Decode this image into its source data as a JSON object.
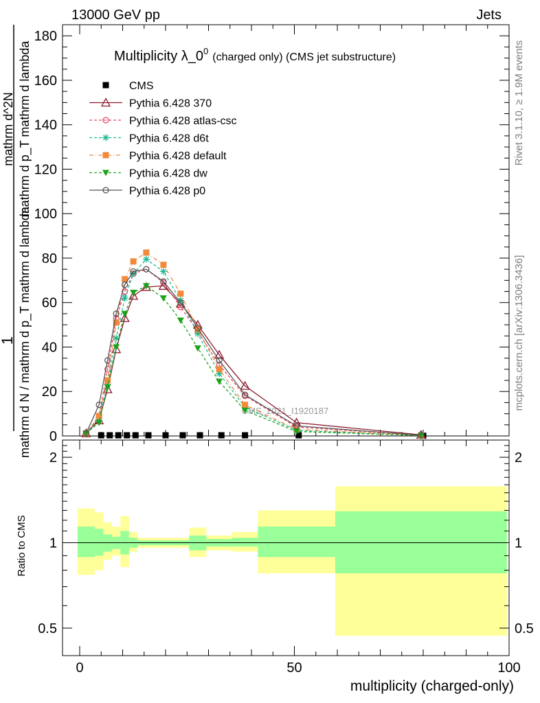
{
  "header": {
    "energy_label": "13000 GeV pp",
    "category_label": "Jets"
  },
  "side_labels": {
    "rivet": "Rivet 3.1.10, ≥ 1.9M events",
    "mcplots": "mcplots.cern.ch [arXiv:1306.3436]"
  },
  "watermark": "CMS_2021_I1920187",
  "chart_data": [
    {
      "type": "line",
      "title": "Multiplicity λ_0",
      "title_superscript": "0",
      "subtitle": "(charged only) (CMS jet substructure)",
      "xlabel": "multiplicity (charged-only)",
      "ylabel_lines": [
        "1",
        "mathrm d N / mathrm d p_T mathrm d lambda",
        "mathrm d^2N",
        "mathrm d p_T mathrm d lambda"
      ],
      "xlim": [
        -4,
        100
      ],
      "ylim": [
        0,
        185
      ],
      "x_ticks": [
        0,
        50,
        100
      ],
      "y_ticks": [
        0,
        20,
        40,
        60,
        80,
        100,
        120,
        140,
        160,
        180
      ],
      "legend_position": "top-left",
      "series": [
        {
          "name": "CMS",
          "color": "#000000",
          "marker": "square",
          "x": [
            5,
            7,
            9,
            11,
            13,
            16,
            20,
            24,
            28,
            33,
            38.5,
            51,
            80
          ],
          "y": [
            0.3,
            0.3,
            0.3,
            0.3,
            0.3,
            0.3,
            0.3,
            0.3,
            0.3,
            0.3,
            0.3,
            0.3,
            0.1
          ]
        },
        {
          "name": "Pythia 6.428 370",
          "color": "#8b1a2b",
          "marker": "triangle-open",
          "dash": "solid",
          "x": [
            1.5,
            4.5,
            6.5,
            8.5,
            10.5,
            12.5,
            15.5,
            19.5,
            23.5,
            27.5,
            32.5,
            38.5,
            50.5,
            79.5
          ],
          "y": [
            1.2,
            7,
            21,
            39,
            53,
            63,
            67,
            67.5,
            59.5,
            50,
            36.5,
            22.5,
            6,
            0.5
          ]
        },
        {
          "name": "Pythia 6.428 atlas-csc",
          "color": "#e8475f",
          "marker": "circle-open",
          "dash": "4,3",
          "x": [
            1.5,
            4.5,
            6.5,
            8.5,
            10.5,
            12.5,
            15.5,
            19.5,
            23.5,
            27.5,
            32.5,
            38.5,
            50.5,
            79.5
          ],
          "y": [
            1.2,
            9,
            30,
            53,
            65,
            73,
            75,
            69,
            58,
            47,
            32,
            18,
            4,
            0.3
          ]
        },
        {
          "name": "Pythia 6.428 d6t",
          "color": "#19b895",
          "marker": "asterisk",
          "dash": "4,3",
          "x": [
            1.5,
            4.5,
            6.5,
            8.5,
            10.5,
            12.5,
            15.5,
            19.5,
            23.5,
            27.5,
            32.5,
            38.5,
            50.5,
            79.5
          ],
          "y": [
            1.2,
            8,
            23,
            44,
            62,
            73,
            79.5,
            74,
            61,
            46,
            28,
            13,
            2.5,
            0.2
          ]
        },
        {
          "name": "Pythia 6.428 default",
          "color": "#f28a3c",
          "marker": "square",
          "dash": "6,3,1,3",
          "x": [
            1.5,
            4.5,
            6.5,
            8.5,
            10.5,
            12.5,
            15.5,
            19.5,
            23.5,
            27.5,
            32.5,
            38.5,
            50.5,
            79.5
          ],
          "y": [
            1.2,
            9,
            25,
            51,
            70.5,
            78.5,
            82.5,
            77,
            64,
            48,
            30,
            14,
            3,
            0.2
          ]
        },
        {
          "name": "Pythia 6.428 dw",
          "color": "#1aa31a",
          "marker": "triangle-down",
          "dash": "4,3",
          "x": [
            1.5,
            4.5,
            6.5,
            8.5,
            10.5,
            12.5,
            15.5,
            19.5,
            23.5,
            27.5,
            32.5,
            38.5,
            50.5,
            79.5
          ],
          "y": [
            1.2,
            6,
            22,
            40,
            55,
            64.5,
            67.5,
            62,
            52,
            39.5,
            24.5,
            11.5,
            2,
            0.2
          ]
        },
        {
          "name": "Pythia 6.428 p0",
          "color": "#555555",
          "marker": "circle-open",
          "dash": "solid",
          "x": [
            1.5,
            4.5,
            6.5,
            8.5,
            10.5,
            12.5,
            15.5,
            19.5,
            23.5,
            27.5,
            32.5,
            38.5,
            50.5,
            79.5
          ],
          "y": [
            1.2,
            14,
            34,
            55,
            68,
            74,
            75,
            69.5,
            60,
            48.5,
            34,
            18.5,
            4.5,
            0.3
          ]
        }
      ]
    },
    {
      "type": "area",
      "ylabel": "Ratio to CMS",
      "xlabel": "multiplicity (charged-only)",
      "xlim": [
        -4,
        100
      ],
      "ylim": [
        0.4,
        2.3
      ],
      "y_scale": "log",
      "y_ticks": [
        0.5,
        1,
        2
      ],
      "x_ticks": [
        0,
        50,
        100
      ],
      "reference_line": 1,
      "bands": {
        "outer_color": "#ffff99",
        "inner_color": "#99ff99",
        "bins": [
          {
            "x0": -0.5,
            "x1": 3.5,
            "outer": [
              0.77,
              1.32
            ],
            "inner": [
              0.89,
              1.14
            ]
          },
          {
            "x0": 3.5,
            "x1": 5.5,
            "outer": [
              0.8,
              1.28
            ],
            "inner": [
              0.9,
              1.12
            ]
          },
          {
            "x0": 5.5,
            "x1": 7.5,
            "outer": [
              0.87,
              1.18
            ],
            "inner": [
              0.93,
              1.07
            ]
          },
          {
            "x0": 7.5,
            "x1": 9.5,
            "outer": [
              0.9,
              1.14
            ],
            "inner": [
              0.95,
              1.05
            ]
          },
          {
            "x0": 9.5,
            "x1": 11.5,
            "outer": [
              0.82,
              1.24
            ],
            "inner": [
              0.91,
              1.1
            ]
          },
          {
            "x0": 11.5,
            "x1": 13.5,
            "outer": [
              0.93,
              1.09
            ],
            "inner": [
              0.96,
              1.04
            ]
          },
          {
            "x0": 13.5,
            "x1": 25.5,
            "outer": [
              0.96,
              1.04
            ],
            "inner": [
              0.98,
              1.02
            ]
          },
          {
            "x0": 25.5,
            "x1": 29.5,
            "outer": [
              0.89,
              1.13
            ],
            "inner": [
              0.94,
              1.06
            ]
          },
          {
            "x0": 29.5,
            "x1": 35.5,
            "outer": [
              0.94,
              1.06
            ],
            "inner": [
              0.97,
              1.03
            ]
          },
          {
            "x0": 35.5,
            "x1": 41.5,
            "outer": [
              0.93,
              1.09
            ],
            "inner": [
              0.97,
              1.04
            ]
          },
          {
            "x0": 41.5,
            "x1": 59.5,
            "outer": [
              0.78,
              1.3
            ],
            "inner": [
              0.89,
              1.14
            ]
          },
          {
            "x0": 59.5,
            "x1": 99.5,
            "outer": [
              0.47,
              1.58
            ],
            "inner": [
              0.78,
              1.29
            ]
          }
        ]
      }
    }
  ]
}
